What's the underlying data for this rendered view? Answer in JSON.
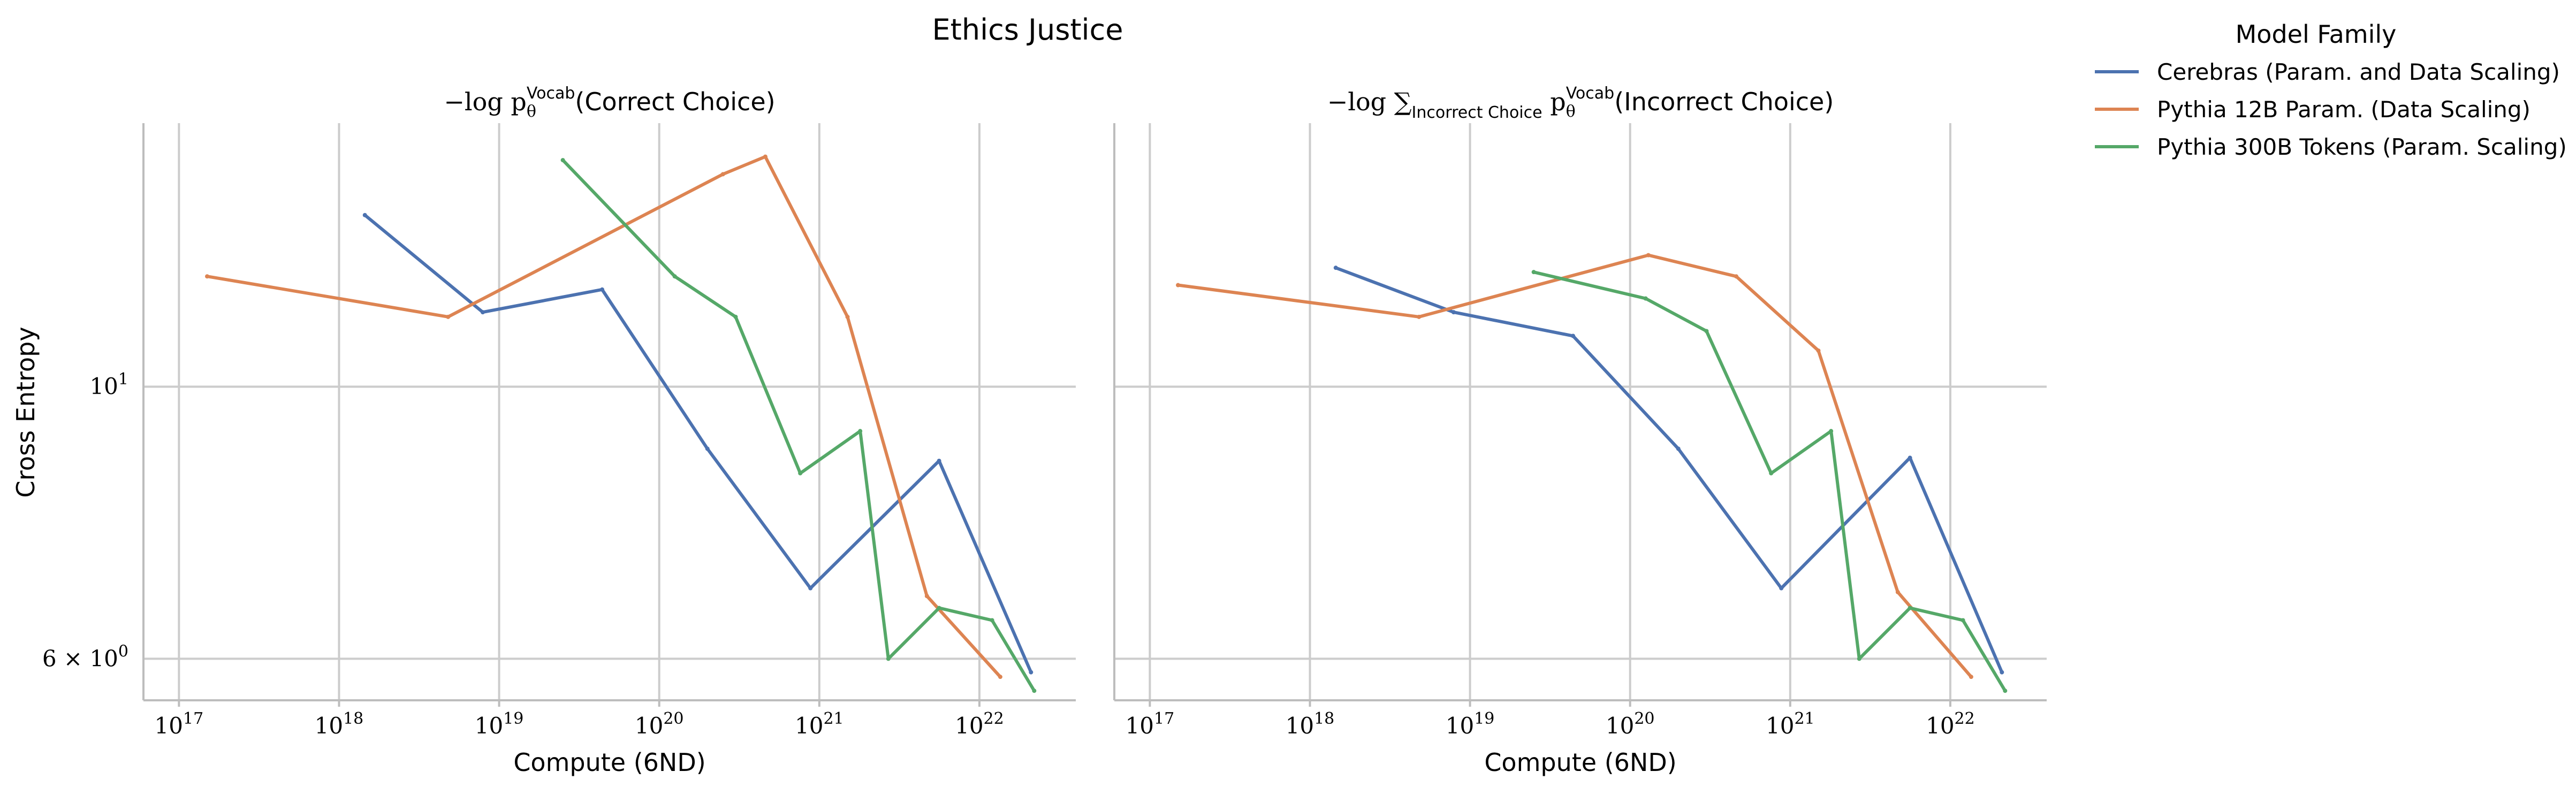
{
  "colors": {
    "cerebras": "#4c72b0",
    "pythia12b": "#dd8452",
    "pythia300b": "#55a868"
  },
  "chart_data": {
    "type": "line",
    "title": "Ethics Justice",
    "ylabel": "Cross Entropy",
    "xlabel": "Compute (6ND)",
    "xscale": "log",
    "yscale": "log",
    "xlim": [
      6e+16,
      4e+22
    ],
    "ylim": [
      5.55,
      16.4
    ],
    "xticks": [
      1e+17,
      1e+18,
      1e+19,
      1e+20,
      1e+21,
      1e+22
    ],
    "xtick_labels": [
      {
        "base": "10",
        "exp": "17"
      },
      {
        "base": "10",
        "exp": "18"
      },
      {
        "base": "10",
        "exp": "19"
      },
      {
        "base": "10",
        "exp": "20"
      },
      {
        "base": "10",
        "exp": "21"
      },
      {
        "base": "10",
        "exp": "22"
      }
    ],
    "yticks": [
      {
        "value": 10,
        "label_base": "10",
        "label_exp": "1"
      },
      {
        "value": 6,
        "label_base": "6 × 10",
        "label_exp": "0"
      }
    ],
    "grid": true,
    "legend": {
      "title": "Model Family",
      "placement": "outside-right",
      "entries": [
        {
          "key": "cerebras",
          "label": "Cerebras (Param. and Data Scaling)"
        },
        {
          "key": "pythia12b",
          "label": "Pythia 12B Param. (Data Scaling)"
        },
        {
          "key": "pythia300b",
          "label": "Pythia 300B Tokens (Param. Scaling)"
        }
      ]
    },
    "panels": [
      {
        "title_prefix": "−log p",
        "title_sub": "θ",
        "title_sup": "Vocab",
        "title_suffix": "(Correct Choice)",
        "series": [
          {
            "key": "cerebras",
            "x": [
              1.45e+18,
              7.9e+18,
              4.4e+19,
              2e+20,
              8.8e+20,
              5.6e+21,
              2.1e+22
            ],
            "y": [
              13.8,
              11.5,
              12.0,
              8.9,
              6.85,
              8.7,
              5.85
            ]
          },
          {
            "key": "pythia12b",
            "x": [
              1.5e+17,
              4.8e+18,
              2.5e+20,
              4.6e+20,
              1.5e+21,
              4.7e+21,
              1.35e+22
            ],
            "y": [
              12.3,
              11.4,
              14.9,
              15.4,
              11.4,
              6.75,
              5.8
            ]
          },
          {
            "key": "pythia300b",
            "x": [
              2.5e+19,
              1.25e+20,
              3e+20,
              7.6e+20,
              1.8e+21,
              2.7e+21,
              5.6e+21,
              1.2e+22,
              2.2e+22
            ],
            "y": [
              15.3,
              12.3,
              11.4,
              8.5,
              9.2,
              6.0,
              6.6,
              6.45,
              5.65
            ]
          }
        ]
      },
      {
        "title_prefix": "−log ∑",
        "title_sum_sub": "Incorrect Choice",
        "title_mid": " p",
        "title_sub": "θ",
        "title_sup": "Vocab",
        "title_suffix": "(Incorrect Choice)",
        "series": [
          {
            "key": "cerebras",
            "x": [
              1.45e+18,
              7.9e+18,
              4.4e+19,
              2e+20,
              8.8e+20,
              5.6e+21,
              2.1e+22
            ],
            "y": [
              12.5,
              11.5,
              11.0,
              8.9,
              6.85,
              8.75,
              5.85
            ]
          },
          {
            "key": "pythia12b",
            "x": [
              1.5e+17,
              4.8e+18,
              1.3e+20,
              4.6e+20,
              1.5e+21,
              4.7e+21,
              1.35e+22
            ],
            "y": [
              12.1,
              11.4,
              12.8,
              12.3,
              10.7,
              6.8,
              5.8
            ]
          },
          {
            "key": "pythia300b",
            "x": [
              2.5e+19,
              1.25e+20,
              3e+20,
              7.6e+20,
              1.8e+21,
              2.7e+21,
              5.6e+21,
              1.2e+22,
              2.2e+22
            ],
            "y": [
              12.4,
              11.8,
              11.1,
              8.5,
              9.2,
              6.0,
              6.6,
              6.45,
              5.65
            ]
          }
        ]
      }
    ]
  }
}
